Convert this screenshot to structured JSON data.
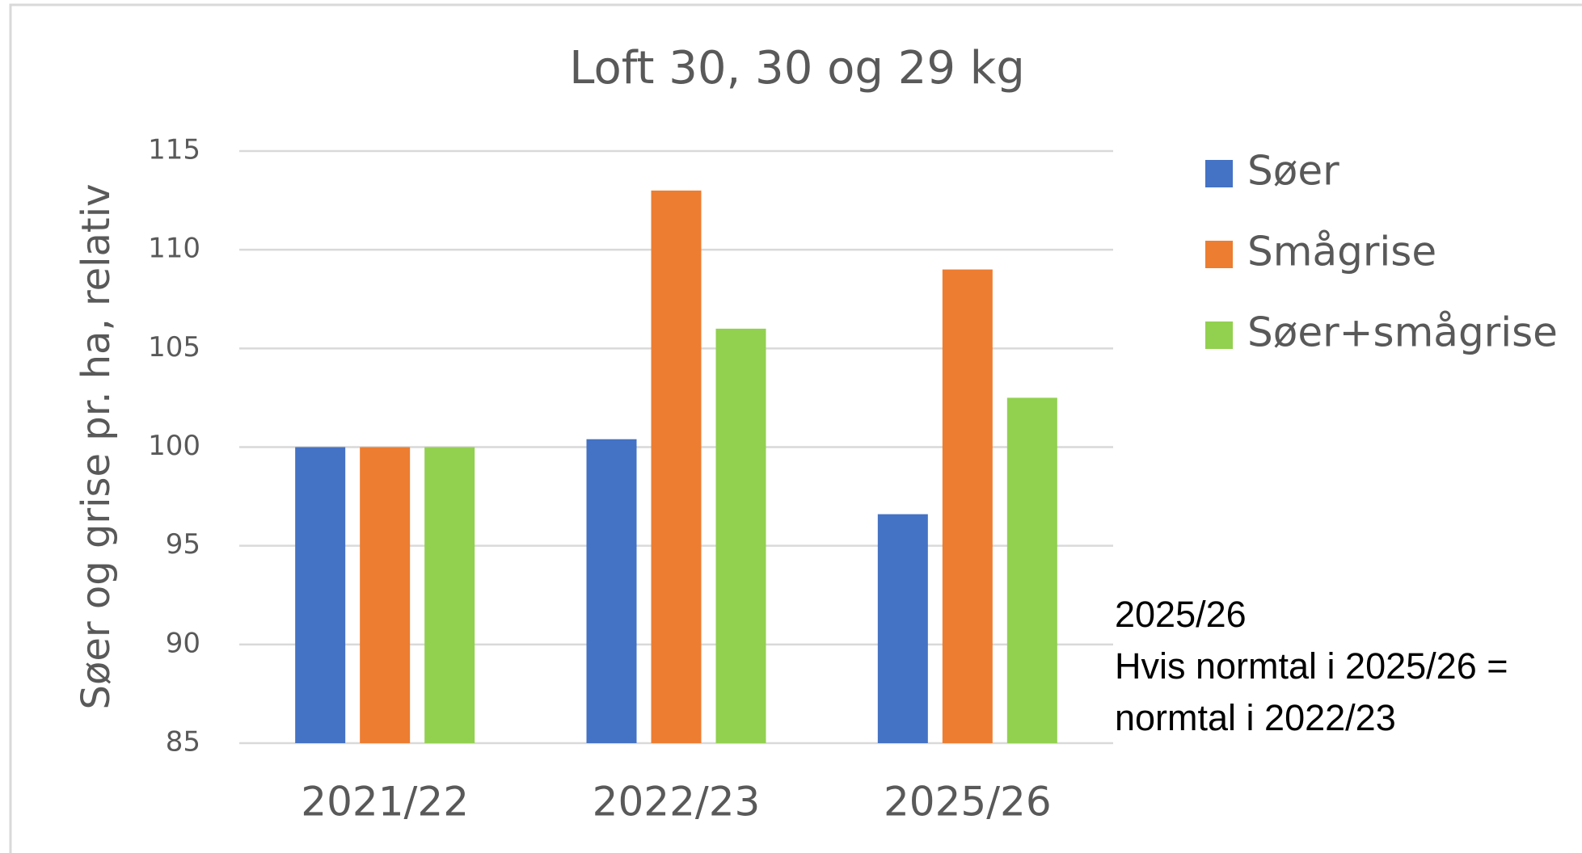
{
  "chart_data": {
    "type": "bar",
    "title": "Loft 30, 30 og 29 kg",
    "y_label": "Søer og grise pr. ha, relativ",
    "categories": [
      "2021/22",
      "2022/23",
      "2025/26"
    ],
    "series": [
      {
        "name": "Søer",
        "color": "#4472c4",
        "values": [
          100,
          100.4,
          96.6
        ]
      },
      {
        "name": "Smågrise",
        "color": "#ed7d31",
        "values": [
          100,
          113,
          109
        ]
      },
      {
        "name": "Søer+smågrise",
        "color": "#92d050",
        "values": [
          100,
          106,
          102.5
        ]
      }
    ],
    "ylim": [
      85,
      115
    ],
    "yticks": [
      85,
      90,
      95,
      100,
      105,
      110,
      115
    ],
    "grid": true,
    "legend": "right",
    "annotation": [
      "2025/26",
      "Hvis normtal i 2025/26 =",
      "normtal i 2022/23"
    ]
  }
}
